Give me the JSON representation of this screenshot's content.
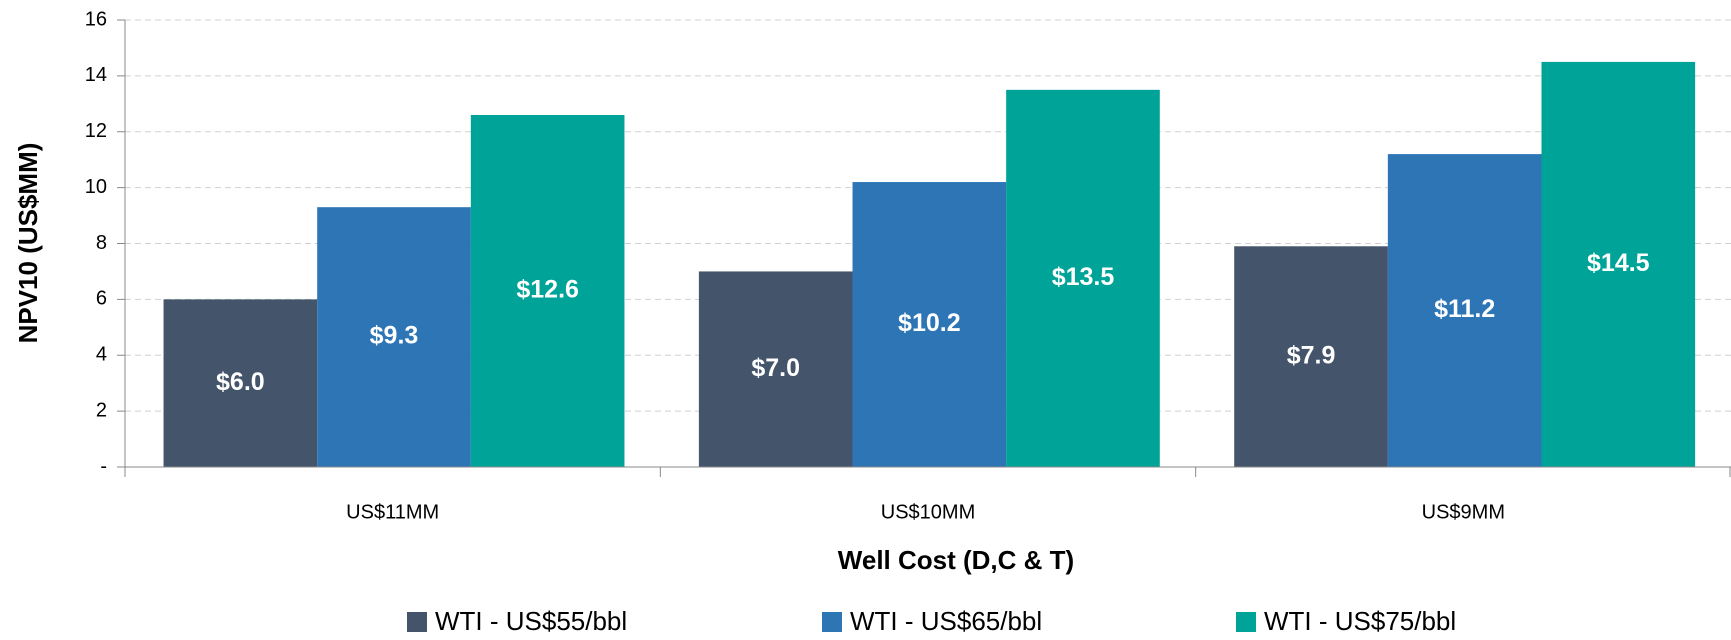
{
  "chart_data": {
    "type": "bar",
    "xlabel": "Well Cost (D,C & T)",
    "ylabel": "NPV10 (US$MM)",
    "categories": [
      "US$11MM",
      "US$10MM",
      "US$9MM"
    ],
    "series": [
      {
        "name": "WTI - US$55/bbl",
        "color": "#44546a",
        "values": [
          6.0,
          7.0,
          7.9
        ],
        "value_labels": [
          "$6.0",
          "$7.0",
          "$7.9"
        ]
      },
      {
        "name": "WTI - US$65/bbl",
        "color": "#2e75b6",
        "values": [
          9.3,
          10.2,
          11.2
        ],
        "value_labels": [
          "$9.3",
          "$10.2",
          "$11.2"
        ]
      },
      {
        "name": "WTI - US$75/bbl",
        "color": "#00a398",
        "values": [
          12.6,
          13.5,
          14.5
        ],
        "value_labels": [
          "$12.6",
          "$13.5",
          "$14.5"
        ]
      }
    ],
    "ylim": [
      0,
      16
    ],
    "yticks": [
      {
        "value": 0,
        "label": "-"
      },
      2,
      4,
      6,
      8,
      10,
      12,
      14,
      16
    ],
    "grid": true
  }
}
